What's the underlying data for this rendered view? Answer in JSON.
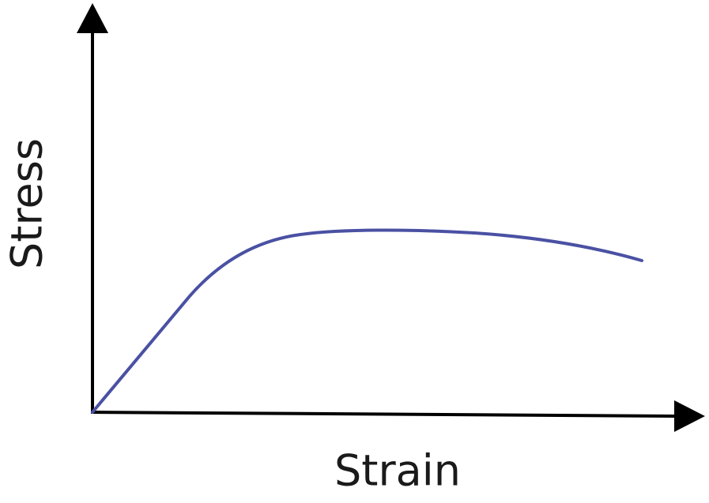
{
  "axes": {
    "y_label": "Stress",
    "x_label": "Strain"
  }
}
